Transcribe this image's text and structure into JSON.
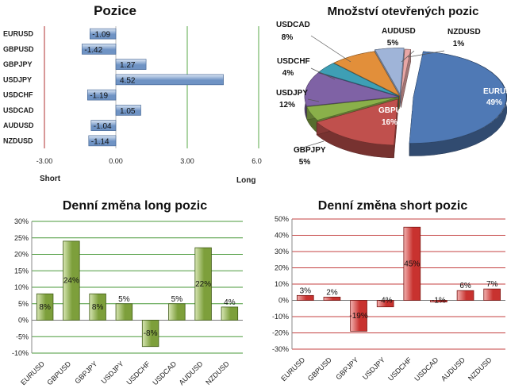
{
  "chart_data": [
    {
      "type": "bar",
      "orientation": "horizontal",
      "title": "Pozice",
      "categories": [
        "EURUSD",
        "GBPUSD",
        "GBPJPY",
        "USDJPY",
        "USDCHF",
        "USDCAD",
        "AUDUSD",
        "NZDUSD"
      ],
      "values": [
        -1.09,
        -1.42,
        1.27,
        4.52,
        -1.19,
        1.05,
        -1.04,
        -1.14
      ],
      "value_labels": [
        "-1.09",
        "-1.42",
        "1.27",
        "4.52",
        "-1.19",
        "1.05",
        "-1.04",
        "-1.14"
      ],
      "xlim": [
        -3,
        6
      ],
      "xticks": [
        "-3.00",
        "0.00",
        "3.00",
        "6.00"
      ],
      "xlabel_left": "Short",
      "xlabel_right": "Long",
      "grid": "vertical",
      "colors": {
        "bar": "#6f93c4",
        "bar_light": "#dbe6f4",
        "bar_edge": "#3c5f8f",
        "grid": "#5aa84a",
        "baseline": "#b03030"
      }
    },
    {
      "type": "pie",
      "title": "Množství otevřených pozic",
      "labels": [
        "EURUSD",
        "GBPUSD",
        "GBPJPY",
        "USDJPY",
        "USDCHF",
        "USDCAD",
        "AUDUSD",
        "NZDUSD"
      ],
      "values": [
        49,
        16,
        5,
        12,
        4,
        8,
        5,
        1
      ],
      "value_labels": [
        "49%",
        "16%",
        "5%",
        "12%",
        "4%",
        "8%",
        "5%",
        "1%"
      ],
      "colors": [
        "#4f79b5",
        "#c0504d",
        "#8ab04a",
        "#7f62a5",
        "#3e9fb5",
        "#e28f3a",
        "#9fb4d8",
        "#e8a7a6"
      ],
      "style": "3d-exploded"
    },
    {
      "type": "bar",
      "title": "Denní změna long pozic",
      "categories": [
        "EURUSD",
        "GBPUSD",
        "GBPJPY",
        "USDJPY",
        "USDCHF",
        "USDCAD",
        "AUDUSD",
        "NZDUSD"
      ],
      "values": [
        8,
        24,
        8,
        5,
        -8,
        5,
        22,
        4
      ],
      "value_labels": [
        "8%",
        "24%",
        "8%",
        "5%",
        "-8%",
        "5%",
        "22%",
        "4%"
      ],
      "ylim": [
        -10,
        30
      ],
      "yticks": [
        "-10%",
        "-5%",
        "0%",
        "5%",
        "10%",
        "15%",
        "20%",
        "25%",
        "30%"
      ],
      "grid": "horizontal",
      "colors": {
        "bar": "#7d9f3b",
        "bar_light": "#d7e6b4",
        "bar_edge": "#3f5b16",
        "grid": "#4a9a3a",
        "baseline": "#777777"
      }
    },
    {
      "type": "bar",
      "title": "Denní změna short pozic",
      "categories": [
        "EURUSD",
        "GBPUSD",
        "GBPJPY",
        "USDJPY",
        "USDCHF",
        "USDCAD",
        "AUDUSD",
        "NZDUSD"
      ],
      "values": [
        3,
        2,
        -19,
        -4,
        45,
        -1,
        6,
        7
      ],
      "value_labels": [
        "3%",
        "2%",
        "-19%",
        "-4%",
        "45%",
        "-1%",
        "6%",
        "7%"
      ],
      "ylim": [
        -30,
        50
      ],
      "yticks": [
        "-30%",
        "-20%",
        "-10%",
        "0%",
        "10%",
        "20%",
        "30%",
        "40%",
        "50%"
      ],
      "grid": "horizontal",
      "colors": {
        "bar": "#c8322f",
        "bar_light": "#f2b3b1",
        "bar_edge": "#7a1412",
        "grid": "#c44040",
        "baseline": "#777777"
      }
    }
  ]
}
